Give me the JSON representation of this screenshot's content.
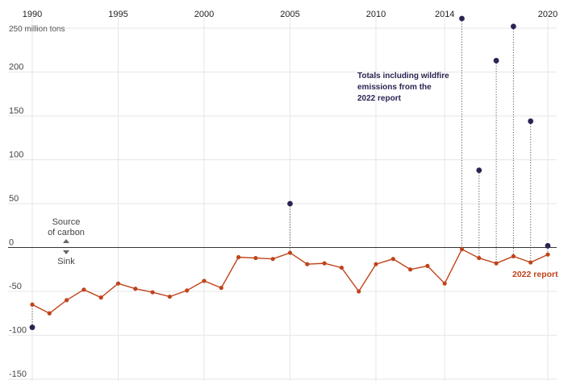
{
  "chart_data": {
    "type": "line",
    "unit_label": "250 million tons",
    "xticks": [
      1990,
      1995,
      2000,
      2005,
      2010,
      2014,
      2020
    ],
    "yticks": [
      250,
      200,
      150,
      100,
      50,
      0,
      -50,
      -100,
      -150
    ],
    "ylim": [
      -150,
      250
    ],
    "xlim": [
      1990,
      2020
    ],
    "grid": true,
    "series": [
      {
        "name": "2022 report",
        "color": "#c0431a",
        "x": [
          1990,
          1991,
          1992,
          1993,
          1994,
          1995,
          1996,
          1997,
          1998,
          1999,
          2000,
          2001,
          2002,
          2003,
          2004,
          2005,
          2006,
          2007,
          2008,
          2009,
          2010,
          2011,
          2012,
          2013,
          2014,
          2015,
          2016,
          2017,
          2018,
          2019,
          2020
        ],
        "values": [
          -65,
          -75,
          -60,
          -48,
          -57,
          -41,
          -47,
          -51,
          -56,
          -49,
          -38,
          -46,
          -11,
          -12,
          -13,
          -6,
          -19,
          -18,
          -23,
          -50,
          -19,
          -13,
          -25,
          -21,
          -41,
          -2,
          -12,
          -18,
          -10,
          -17,
          -8
        ]
      },
      {
        "name": "Totals including wildfire emissions from the 2022 report",
        "color": "#2b2452",
        "x": [
          1990,
          2005,
          2015,
          2016,
          2017,
          2018,
          2019,
          2020
        ],
        "values": [
          -91,
          50,
          261,
          88,
          213,
          252,
          144,
          2
        ]
      }
    ],
    "annotations": {
      "source_line1": "Source",
      "source_line2": "of carbon",
      "sink": "Sink",
      "wildfire_line1": "Totals including wildfire",
      "wildfire_line2": "emissions from the",
      "wildfire_line3": "2022 report",
      "report_label": "2022 report"
    },
    "colors": {
      "grid": "#e6e6e6",
      "zero_line": "#333333",
      "arrow": "#666666"
    }
  }
}
